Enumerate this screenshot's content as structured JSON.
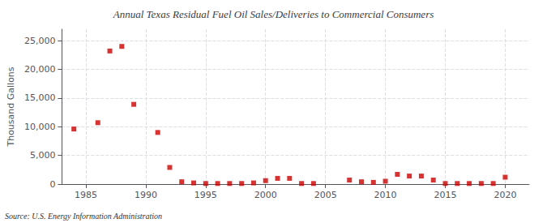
{
  "chart_data": {
    "type": "scatter",
    "title": "Annual Texas Residual Fuel Oil Sales/Deliveries to Commercial Consumers",
    "ylabel": "Thousand Gallons",
    "annotations": [
      "Source: U.S. Energy Information Administration"
    ],
    "x": [
      1984,
      1986,
      1987,
      1988,
      1989,
      1991,
      1992,
      1993,
      1994,
      1995,
      1996,
      1997,
      1998,
      1999,
      2000,
      2001,
      2002,
      2003,
      2004,
      2007,
      2008,
      2009,
      2010,
      2011,
      2012,
      2013,
      2014,
      2015,
      2016,
      2017,
      2018,
      2019,
      2020
    ],
    "values": [
      9600,
      10700,
      23200,
      24000,
      13900,
      9000,
      2900,
      400,
      200,
      100,
      100,
      100,
      100,
      200,
      600,
      1000,
      1000,
      100,
      100,
      700,
      400,
      300,
      500,
      1700,
      1400,
      1400,
      700,
      100,
      100,
      100,
      100,
      100,
      1200
    ],
    "color": "#cc0000",
    "marker": "square",
    "xlim": [
      1983,
      2022
    ],
    "xticks": [
      1985,
      1990,
      1995,
      2000,
      2005,
      2010,
      2015,
      2020
    ],
    "ylim": [
      0,
      27000
    ],
    "yticks": [
      0,
      {
        "value": 5000,
        "label": "5,000"
      },
      {
        "value": 10000,
        "label": "10,000"
      },
      {
        "value": 15000,
        "label": "15,000"
      },
      {
        "value": 20000,
        "label": "20,000"
      },
      {
        "value": 25000,
        "label": "25,000"
      }
    ],
    "grid": true
  }
}
